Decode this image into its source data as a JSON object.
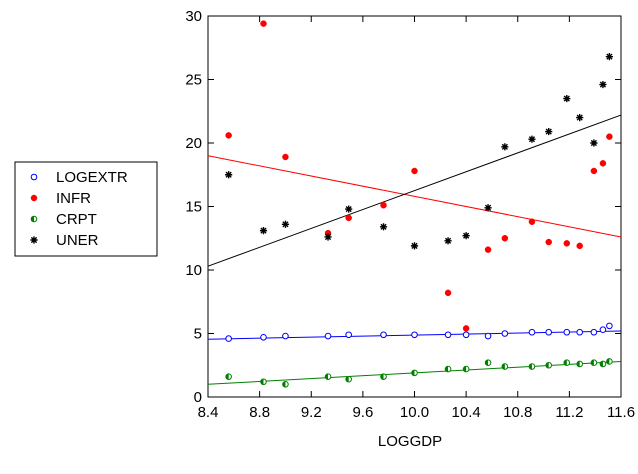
{
  "chart_data": {
    "type": "scatter",
    "title": "",
    "xlabel": "LOGGDP",
    "ylabel": "",
    "xlim": [
      8.4,
      11.6
    ],
    "ylim": [
      0,
      30
    ],
    "xticks": [
      "8.4",
      "8.8",
      "9.2",
      "9.6",
      "10.0",
      "10.4",
      "10.8",
      "11.2",
      "11.6"
    ],
    "yticks": [
      "0",
      "5",
      "10",
      "15",
      "20",
      "25",
      "30"
    ],
    "grid": false,
    "legend_position": "left",
    "series": [
      {
        "name": "LOGEXTR",
        "marker": "open-circle",
        "color": "#0000ff",
        "x": [
          8.56,
          8.83,
          9.0,
          9.33,
          9.49,
          9.76,
          10.0,
          10.26,
          10.4,
          10.57,
          10.7,
          10.91,
          11.04,
          11.18,
          11.28,
          11.39,
          11.46,
          11.51
        ],
        "y": [
          4.6,
          4.7,
          4.8,
          4.8,
          4.9,
          4.9,
          4.9,
          4.9,
          4.9,
          4.8,
          5.0,
          5.1,
          5.1,
          5.1,
          5.1,
          5.1,
          5.3,
          5.6
        ],
        "fit": [
          [
            8.4,
            4.55
          ],
          [
            11.6,
            5.2
          ]
        ]
      },
      {
        "name": "INFR",
        "marker": "filled-circle",
        "color": "#ff0000",
        "x": [
          8.56,
          8.83,
          9.0,
          9.33,
          9.49,
          9.76,
          10.0,
          10.26,
          10.4,
          10.57,
          10.7,
          10.91,
          11.04,
          11.18,
          11.28,
          11.39,
          11.46,
          11.51
        ],
        "y": [
          20.6,
          29.4,
          18.9,
          12.9,
          14.1,
          15.1,
          17.8,
          8.2,
          5.4,
          11.6,
          12.5,
          13.8,
          12.2,
          12.1,
          11.9,
          17.8,
          18.4,
          20.5
        ],
        "fit": [
          [
            8.4,
            19.0
          ],
          [
            11.6,
            12.6
          ]
        ]
      },
      {
        "name": "CRPT",
        "marker": "half-circle",
        "color": "#008000",
        "x": [
          8.56,
          8.83,
          9.0,
          9.33,
          9.49,
          9.76,
          10.0,
          10.26,
          10.4,
          10.57,
          10.7,
          10.91,
          11.04,
          11.18,
          11.28,
          11.39,
          11.46,
          11.51
        ],
        "y": [
          1.6,
          1.2,
          1.0,
          1.6,
          1.4,
          1.6,
          1.9,
          2.2,
          2.2,
          2.7,
          2.4,
          2.4,
          2.5,
          2.7,
          2.6,
          2.7,
          2.6,
          2.8
        ],
        "fit": [
          [
            8.4,
            1.0
          ],
          [
            11.6,
            2.8
          ]
        ]
      },
      {
        "name": "UNER",
        "marker": "asterisk",
        "color": "#000000",
        "x": [
          8.56,
          8.83,
          9.0,
          9.33,
          9.49,
          9.76,
          10.0,
          10.26,
          10.4,
          10.57,
          10.7,
          10.91,
          11.04,
          11.18,
          11.28,
          11.39,
          11.46,
          11.51
        ],
        "y": [
          17.5,
          13.1,
          13.6,
          12.6,
          14.8,
          13.4,
          11.9,
          12.3,
          12.7,
          14.9,
          19.7,
          20.3,
          20.9,
          23.5,
          22.0,
          20.0,
          24.6,
          26.8
        ],
        "fit": [
          [
            8.4,
            10.3
          ],
          [
            11.6,
            22.2
          ]
        ]
      }
    ]
  }
}
